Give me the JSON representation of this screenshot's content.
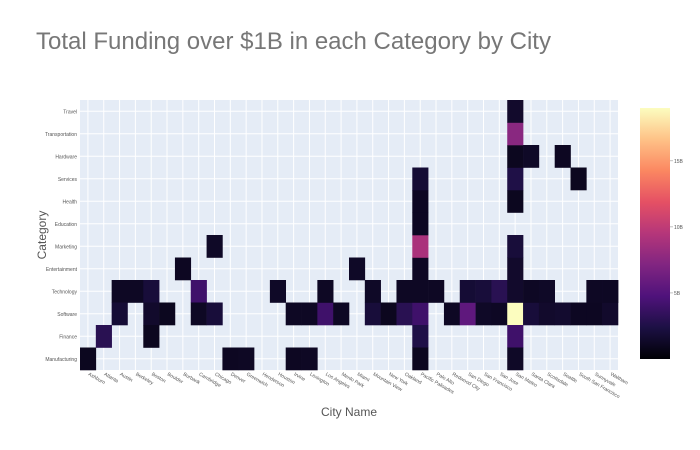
{
  "chart_data": {
    "type": "heatmap",
    "title": "Total Funding over $1B in each Category by City",
    "xlabel": "City Name",
    "ylabel": "Category",
    "x_categories": [
      "Ashburn",
      "Atlanta",
      "Austin",
      "Berkeley",
      "Boston",
      "Boulder",
      "Burbank",
      "Cambridge",
      "Chicago",
      "Denver",
      "Greenwich",
      "Henderson",
      "Houston",
      "Irvine",
      "Lexington",
      "Los Angeles",
      "Menlo Park",
      "Miami",
      "Mountain View",
      "New York",
      "Oakland",
      "Pacific Palisades",
      "Palo Alto",
      "Redwood City",
      "San Diego",
      "San Francisco",
      "San Jose",
      "San Mateo",
      "Santa Clara",
      "Scottsdale",
      "Seattle",
      "South San Francisco",
      "Sunnyvale",
      "Waltham"
    ],
    "x_tick_labels": [
      "Ashburn",
      "Atlanta",
      "Austin",
      "Berkeley",
      "Boston",
      "Boulder",
      "Burbank",
      "Cambridge",
      "Chicago",
      "Denver",
      "Greenwich",
      "Henderson",
      "Houston",
      "Irvine",
      "Lexington",
      "Los Angeles",
      "Menlo Park",
      "Miami",
      "Mountain View",
      "New York",
      "Oakland",
      "Pacific Palisades",
      "Palo Alto",
      "Redwood City",
      "San Diego",
      "San Francisco",
      "San Jose",
      "San Mateo",
      "Santa Clara",
      "Scottsdale",
      "Seattle",
      "South San Francisco",
      "Sunnyvale",
      "Waltham"
    ],
    "y_categories": [
      "Manufacturing",
      "Finance",
      "Software",
      "Technology",
      "Entertainment",
      "Marketing",
      "Education",
      "Health",
      "Services",
      "Hardware",
      "Transportation",
      "Travel"
    ],
    "colorscale": [
      "#000004",
      "#1c1044",
      "#4f127b",
      "#812581",
      "#b5367a",
      "#e55064",
      "#fb8761",
      "#fec287",
      "#fcfdbf"
    ],
    "colorbar_ticks": [
      {
        "value": 5,
        "label": "5B"
      },
      {
        "value": 10,
        "label": "10B"
      },
      {
        "value": 15,
        "label": "15B"
      }
    ],
    "zmin": 0,
    "zmax": 19,
    "grid": true,
    "cells": [
      {
        "x": "Ashburn",
        "y": "Manufacturing",
        "z": 1.0
      },
      {
        "x": "Atlanta",
        "y": "Finance",
        "z": 3.0
      },
      {
        "x": "Austin",
        "y": "Technology",
        "z": 1.2
      },
      {
        "x": "Berkeley",
        "y": "Technology",
        "z": 1.2
      },
      {
        "x": "Austin",
        "y": "Software",
        "z": 1.8
      },
      {
        "x": "Boston",
        "y": "Technology",
        "z": 2.0
      },
      {
        "x": "Boston",
        "y": "Software",
        "z": 1.5
      },
      {
        "x": "Boston",
        "y": "Finance",
        "z": 1.0
      },
      {
        "x": "Boulder",
        "y": "Software",
        "z": 1.0
      },
      {
        "x": "Burbank",
        "y": "Entertainment",
        "z": 1.1
      },
      {
        "x": "Cambridge",
        "y": "Technology",
        "z": 4.0
      },
      {
        "x": "Cambridge",
        "y": "Software",
        "z": 1.2
      },
      {
        "x": "Chicago",
        "y": "Software",
        "z": 2.0
      },
      {
        "x": "Chicago",
        "y": "Marketing",
        "z": 1.3
      },
      {
        "x": "Denver",
        "y": "Manufacturing",
        "z": 1.1
      },
      {
        "x": "Greenwich",
        "y": "Manufacturing",
        "z": 1.2
      },
      {
        "x": "Houston",
        "y": "Technology",
        "z": 1.3
      },
      {
        "x": "Irvine",
        "y": "Software",
        "z": 1.2
      },
      {
        "x": "Lexington",
        "y": "Software",
        "z": 1.2
      },
      {
        "x": "Irvine",
        "y": "Manufacturing",
        "z": 1.1
      },
      {
        "x": "Lexington",
        "y": "Manufacturing",
        "z": 1.2
      },
      {
        "x": "Los Angeles",
        "y": "Software",
        "z": 4.0
      },
      {
        "x": "Los Angeles",
        "y": "Technology",
        "z": 1.2
      },
      {
        "x": "Menlo Park",
        "y": "Software",
        "z": 1.2
      },
      {
        "x": "Miami",
        "y": "Entertainment",
        "z": 1.3
      },
      {
        "x": "Mountain View",
        "y": "Software",
        "z": 2.0
      },
      {
        "x": "Mountain View",
        "y": "Technology",
        "z": 1.3
      },
      {
        "x": "New York",
        "y": "Software",
        "z": 1.0
      },
      {
        "x": "Oakland",
        "y": "Software",
        "z": 3.0
      },
      {
        "x": "Oakland",
        "y": "Technology",
        "z": 1.2
      },
      {
        "x": "Pacific Palisades",
        "y": "Software",
        "z": 4.0
      },
      {
        "x": "Pacific Palisades",
        "y": "Technology",
        "z": 1.2
      },
      {
        "x": "Pacific Palisades",
        "y": "Finance",
        "z": 2.5
      },
      {
        "x": "Pacific Palisades",
        "y": "Entertainment",
        "z": 1.2
      },
      {
        "x": "Pacific Palisades",
        "y": "Marketing",
        "z": 9.0
      },
      {
        "x": "Pacific Palisades",
        "y": "Education",
        "z": 1.1
      },
      {
        "x": "Pacific Palisades",
        "y": "Health",
        "z": 1.1
      },
      {
        "x": "Pacific Palisades",
        "y": "Services",
        "z": 1.8
      },
      {
        "x": "Pacific Palisades",
        "y": "Manufacturing",
        "z": 1.0
      },
      {
        "x": "Palo Alto",
        "y": "Technology",
        "z": 1.2
      },
      {
        "x": "Redwood City",
        "y": "Software",
        "z": 1.2
      },
      {
        "x": "San Diego",
        "y": "Software",
        "z": 5.5
      },
      {
        "x": "San Diego",
        "y": "Technology",
        "z": 1.8
      },
      {
        "x": "San Francisco",
        "y": "Technology",
        "z": 2.0
      },
      {
        "x": "San Francisco",
        "y": "Software",
        "z": 1.3
      },
      {
        "x": "San Jose",
        "y": "Software",
        "z": 1.2
      },
      {
        "x": "San Jose",
        "y": "Technology",
        "z": 3.0
      },
      {
        "x": "San Mateo",
        "y": "Software",
        "z": 19.0
      },
      {
        "x": "San Mateo",
        "y": "Technology",
        "z": 1.5
      },
      {
        "x": "San Mateo",
        "y": "Finance",
        "z": 4.0
      },
      {
        "x": "San Mateo",
        "y": "Manufacturing",
        "z": 1.3
      },
      {
        "x": "San Mateo",
        "y": "Entertainment",
        "z": 1.5
      },
      {
        "x": "San Mateo",
        "y": "Marketing",
        "z": 2.0
      },
      {
        "x": "San Mateo",
        "y": "Health",
        "z": 1.0
      },
      {
        "x": "San Mateo",
        "y": "Services",
        "z": 2.5
      },
      {
        "x": "San Mateo",
        "y": "Hardware",
        "z": 1.0
      },
      {
        "x": "San Mateo",
        "y": "Transportation",
        "z": 7.5
      },
      {
        "x": "San Mateo",
        "y": "Travel",
        "z": 1.5
      },
      {
        "x": "Santa Clara",
        "y": "Software",
        "z": 2.0
      },
      {
        "x": "Santa Clara",
        "y": "Technology",
        "z": 1.2
      },
      {
        "x": "Santa Clara",
        "y": "Hardware",
        "z": 1.3
      },
      {
        "x": "Scottsdale",
        "y": "Software",
        "z": 1.5
      },
      {
        "x": "Scottsdale",
        "y": "Technology",
        "z": 1.3
      },
      {
        "x": "Seattle",
        "y": "Software",
        "z": 1.6
      },
      {
        "x": "Seattle",
        "y": "Hardware",
        "z": 1.1
      },
      {
        "x": "South San Francisco",
        "y": "Services",
        "z": 1.0
      },
      {
        "x": "South San Francisco",
        "y": "Software",
        "z": 1.1
      },
      {
        "x": "Sunnyvale",
        "y": "Technology",
        "z": 1.2
      },
      {
        "x": "Sunnyvale",
        "y": "Software",
        "z": 1.1
      },
      {
        "x": "Waltham",
        "y": "Technology",
        "z": 1.8
      },
      {
        "x": "Waltham",
        "y": "Software",
        "z": 1.5
      },
      {
        "x": "Waltham",
        "y": "Technology",
        "z": 1.2
      }
    ]
  }
}
